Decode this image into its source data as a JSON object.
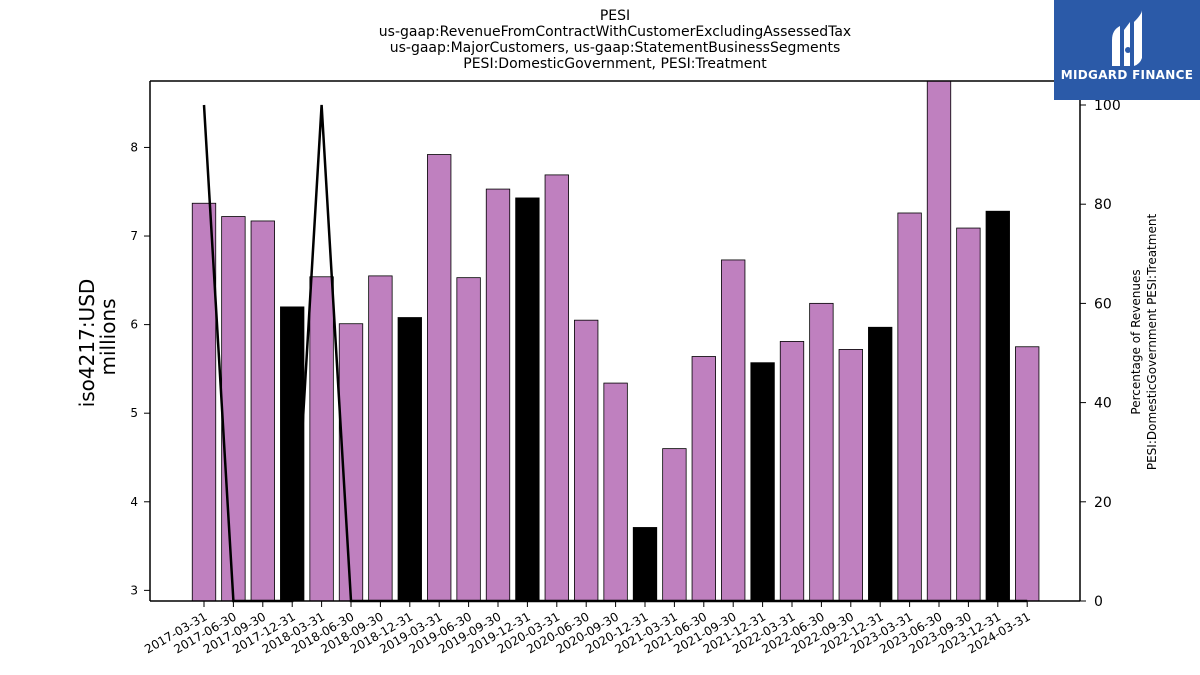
{
  "chart_data": {
    "type": "bar",
    "title_lines": [
      "PESI",
      "us-gaap:RevenueFromContractWithCustomerExcludingAssessedTax",
      "us-gaap:MajorCustomers, us-gaap:StatementBusinessSegments",
      "PESI:DomesticGovernment, PESI:Treatment"
    ],
    "ylabel_lines": [
      "iso4217:USD",
      "millions"
    ],
    "y2label_lines": [
      "Percentage of Revenues",
      "PESI:DomesticGovernment PESI:Treatment"
    ],
    "ylim": [
      2.88,
      8.75
    ],
    "y2lim": [
      0,
      105
    ],
    "yticks": [
      3,
      4,
      5,
      6,
      7,
      8
    ],
    "y2ticks": [
      0,
      20,
      40,
      60,
      80,
      100
    ],
    "categories": [
      "2017-03-31",
      "2017-06-30",
      "2017-09-30",
      "2017-12-31",
      "2018-03-31",
      "2018-06-30",
      "2018-09-30",
      "2018-12-31",
      "2019-03-31",
      "2019-06-30",
      "2019-09-30",
      "2019-12-31",
      "2020-03-31",
      "2020-06-30",
      "2020-09-30",
      "2020-12-31",
      "2021-03-31",
      "2021-06-30",
      "2021-09-30",
      "2021-12-31",
      "2022-03-31",
      "2022-06-30",
      "2022-09-30",
      "2022-12-31",
      "2023-03-31",
      "2023-06-30",
      "2023-09-30",
      "2023-12-31",
      "2024-03-31"
    ],
    "values": [
      7.37,
      7.22,
      7.17,
      6.2,
      6.54,
      6.01,
      6.55,
      6.08,
      7.92,
      6.53,
      7.53,
      7.43,
      7.69,
      6.05,
      5.34,
      3.71,
      4.6,
      5.64,
      6.73,
      5.57,
      5.81,
      6.24,
      5.72,
      5.97,
      7.26,
      8.75,
      7.09,
      7.28,
      5.75
    ],
    "bar_colors": [
      "#bf80bf",
      "#bf80bf",
      "#bf80bf",
      "#000000",
      "#bf80bf",
      "#bf80bf",
      "#bf80bf",
      "#000000",
      "#bf80bf",
      "#bf80bf",
      "#bf80bf",
      "#000000",
      "#bf80bf",
      "#bf80bf",
      "#bf80bf",
      "#000000",
      "#bf80bf",
      "#bf80bf",
      "#bf80bf",
      "#000000",
      "#bf80bf",
      "#bf80bf",
      "#bf80bf",
      "#000000",
      "#bf80bf",
      "#bf80bf",
      "#bf80bf",
      "#000000",
      "#bf80bf"
    ],
    "line_series": {
      "values": [
        100,
        0,
        0,
        0,
        100,
        0,
        0,
        0,
        0,
        0,
        0,
        0,
        0,
        0,
        0,
        0,
        0,
        0,
        0,
        0,
        0,
        0,
        0,
        0,
        0,
        0,
        0,
        0,
        0
      ],
      "color": "#000000"
    }
  },
  "logo": {
    "text": "MIDGARD FINANCE",
    "color": "#2b5aa8"
  }
}
